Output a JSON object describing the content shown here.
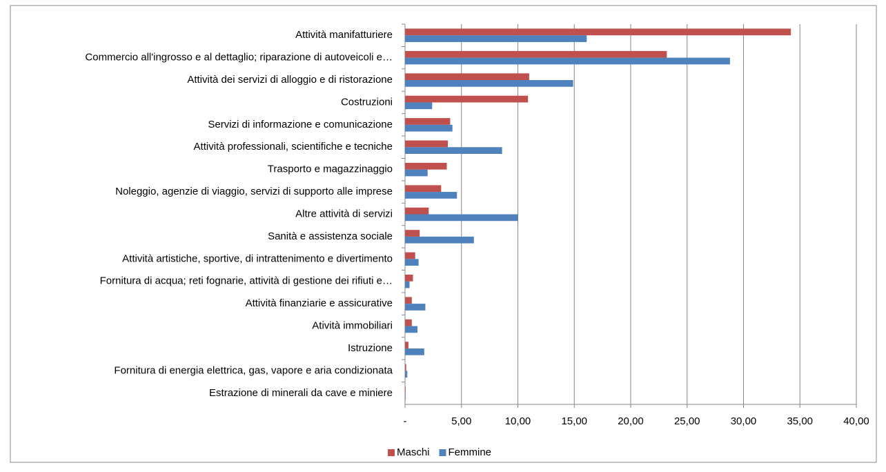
{
  "chart_data": {
    "type": "hbar",
    "categories": [
      "Attività manifatturiere",
      "Commercio all'ingrosso e al dettaglio; riparazione di autoveicoli e…",
      "Attività dei servizi di alloggio e di ristorazione",
      "Costruzioni",
      "Servizi di informazione e comunicazione",
      "Attività professionali, scientifiche e tecniche",
      "Trasporto e magazzinaggio",
      "Noleggio, agenzie di viaggio, servizi di supporto alle imprese",
      "Altre attività di servizi",
      "Sanità e assistenza sociale",
      "Attività artistiche, sportive, di intrattenimento e divertimento",
      "Fornitura di acqua; reti fognarie, attività di gestione dei rifiuti e…",
      "Attività finanziarie e assicurative",
      "Atività immobiliari",
      "Istruzione",
      "Fornitura di energia elettrica, gas, vapore e aria condizionata",
      "Estrazione di minerali da cave e miniere"
    ],
    "series": [
      {
        "name": "Maschi",
        "color": "#c0504d",
        "values": [
          34.2,
          23.2,
          11.0,
          10.9,
          4.0,
          3.8,
          3.7,
          3.2,
          2.1,
          1.3,
          0.9,
          0.7,
          0.6,
          0.6,
          0.3,
          0.1,
          0.05
        ]
      },
      {
        "name": "Femmine",
        "color": "#4f81bd",
        "values": [
          16.1,
          28.8,
          14.9,
          2.4,
          4.2,
          8.6,
          2.0,
          4.6,
          10.0,
          6.1,
          1.2,
          0.4,
          1.8,
          1.1,
          1.7,
          0.2,
          0.05
        ]
      }
    ],
    "xlim": [
      0,
      40
    ],
    "xticks": [
      {
        "value": 0,
        "label": "-"
      },
      {
        "value": 5,
        "label": "5,00"
      },
      {
        "value": 10,
        "label": "10,00"
      },
      {
        "value": 15,
        "label": "15,00"
      },
      {
        "value": 20,
        "label": "20,00"
      },
      {
        "value": 25,
        "label": "25,00"
      },
      {
        "value": 30,
        "label": "30,00"
      },
      {
        "value": 35,
        "label": "35,00"
      },
      {
        "value": 40,
        "label": "40,00"
      }
    ],
    "grid": true,
    "legend": "bottom"
  }
}
